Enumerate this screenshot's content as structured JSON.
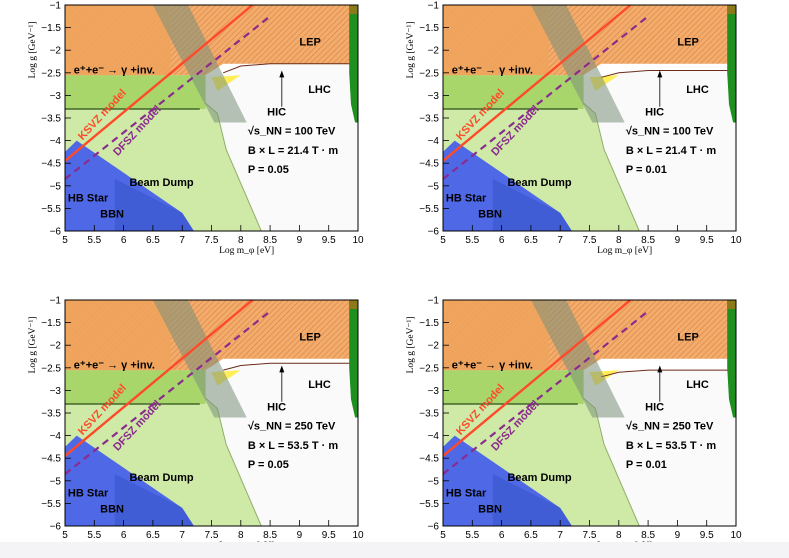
{
  "chart_data": [
    {
      "type": "area",
      "panel_position": "top-left",
      "xlabel": "Log m_φ [eV]",
      "ylabel": "Log g [GeV⁻¹]",
      "xlim": [
        5,
        10
      ],
      "ylim": [
        -6,
        -1
      ],
      "xticks": [
        "5",
        "5.5",
        "6",
        "6.5",
        "7",
        "7.5",
        "8",
        "8.5",
        "9",
        "9.5",
        "10"
      ],
      "yticks": [
        "−1",
        "−1.5",
        "−2",
        "−2.5",
        "−3",
        "−3.5",
        "−4",
        "−4.5",
        "−5",
        "−5.5",
        "−6"
      ],
      "labels": {
        "lep": "LEP",
        "lhc": "LHC",
        "ee": "e⁺+e⁻ → γ +inv.",
        "ksvz": "KSVZ model",
        "dfsz": "DFSZ model",
        "beam_dump": "Beam Dump",
        "hb_star": "HB Star",
        "bbn": "BBN",
        "hic": "HIC"
      },
      "params": {
        "sqrt_s": "√s_NN = 100 TeV",
        "bl": "B × L = 21.4 T · m",
        "p": "P = 0.05"
      },
      "hic_boundary": [
        [
          7.7,
          -2.5
        ],
        [
          8.0,
          -2.35
        ],
        [
          8.5,
          -2.3
        ],
        [
          9.0,
          -2.3
        ],
        [
          9.5,
          -2.3
        ],
        [
          10,
          -2.3
        ]
      ]
    },
    {
      "type": "area",
      "panel_position": "top-right",
      "xlabel": "Log m_φ [eV]",
      "ylabel": "Log g [GeV⁻¹]",
      "xlim": [
        5,
        10
      ],
      "ylim": [
        -6,
        -1
      ],
      "xticks": [
        "5",
        "5.5",
        "6",
        "6.5",
        "7",
        "7.5",
        "8",
        "8.5",
        "9",
        "9.5",
        "10"
      ],
      "yticks": [
        "−1",
        "−1.5",
        "−2",
        "−2.5",
        "−3",
        "−3.5",
        "−4",
        "−4.5",
        "−5",
        "−5.5",
        "−6"
      ],
      "labels": {
        "lep": "LEP",
        "lhc": "LHC",
        "ee": "e⁺+e⁻ → γ +inv.",
        "ksvz": "KSVZ model",
        "dfsz": "DFSZ model",
        "beam_dump": "Beam Dump",
        "hb_star": "HB Star",
        "bbn": "BBN",
        "hic": "HIC"
      },
      "params": {
        "sqrt_s": "√s_NN = 100 TeV",
        "bl": "B × L = 21.4 T · m",
        "p": "P = 0.01"
      },
      "hic_boundary": [
        [
          7.7,
          -2.6
        ],
        [
          8.0,
          -2.5
        ],
        [
          8.5,
          -2.45
        ],
        [
          9.0,
          -2.45
        ],
        [
          9.5,
          -2.45
        ],
        [
          10,
          -2.45
        ]
      ]
    },
    {
      "type": "area",
      "panel_position": "bottom-left",
      "xlabel": "Log m_φ [eV]",
      "ylabel": "Log g [GeV⁻¹]",
      "xlim": [
        5,
        10
      ],
      "ylim": [
        -6,
        -1
      ],
      "xticks": [
        "5",
        "5.5",
        "6",
        "6.5",
        "7",
        "7.5",
        "8",
        "8.5",
        "9",
        "9.5",
        "10"
      ],
      "yticks": [
        "−1",
        "−1.5",
        "−2",
        "−2.5",
        "−3",
        "−3.5",
        "−4",
        "−4.5",
        "−5",
        "−5.5",
        "−6"
      ],
      "labels": {
        "lep": "LEP",
        "lhc": "LHC",
        "ee": "e⁺+e⁻ → γ +inv.",
        "ksvz": "KSVZ model",
        "dfsz": "DFSZ model",
        "beam_dump": "Beam Dump",
        "hb_star": "HB Star",
        "bbn": "BBN",
        "hic": "HIC"
      },
      "params": {
        "sqrt_s": "√s_NN = 250 TeV",
        "bl": "B × L = 53.5 T · m",
        "p": "P = 0.05"
      },
      "hic_boundary": [
        [
          7.7,
          -2.55
        ],
        [
          8.0,
          -2.45
        ],
        [
          8.5,
          -2.4
        ],
        [
          9.0,
          -2.4
        ],
        [
          9.5,
          -2.4
        ],
        [
          10,
          -2.4
        ]
      ]
    },
    {
      "type": "area",
      "panel_position": "bottom-right",
      "xlabel": "Log m_φ [eV]",
      "ylabel": "Log g [GeV⁻¹]",
      "xlim": [
        5,
        10
      ],
      "ylim": [
        -6,
        -1
      ],
      "xticks": [
        "5",
        "5.5",
        "6",
        "6.5",
        "7",
        "7.5",
        "8",
        "8.5",
        "9",
        "9.5",
        "10"
      ],
      "yticks": [
        "−1",
        "−1.5",
        "−2",
        "−2.5",
        "−3",
        "−3.5",
        "−4",
        "−4.5",
        "−5",
        "−5.5",
        "−6"
      ],
      "labels": {
        "lep": "LEP",
        "lhc": "LHC",
        "ee": "e⁺+e⁻ → γ +inv.",
        "ksvz": "KSVZ model",
        "dfsz": "DFSZ model",
        "beam_dump": "Beam Dump",
        "hb_star": "HB Star",
        "bbn": "BBN",
        "hic": "HIC"
      },
      "params": {
        "sqrt_s": "√s_NN = 250 TeV",
        "bl": "B × L = 53.5 T · m",
        "p": "P = 0.01"
      },
      "hic_boundary": [
        [
          7.7,
          -2.7
        ],
        [
          8.0,
          -2.6
        ],
        [
          8.5,
          -2.55
        ],
        [
          9.0,
          -2.55
        ],
        [
          9.5,
          -2.55
        ],
        [
          10,
          -2.55
        ]
      ]
    }
  ],
  "colors": {
    "lep": "#f0a35c",
    "lep_hatch": "#d9722f",
    "ee": "#a9d66b",
    "beam_dump": "#cfe9a6",
    "hb_star": "#4f68e6",
    "bbn": "#3c59d0",
    "lhc_band": "#1f8f1f",
    "ksvz": "#ff4a2a",
    "dfsz": "#8a2b8e",
    "hic": "#fafafa",
    "yellow": "#ffee55"
  }
}
